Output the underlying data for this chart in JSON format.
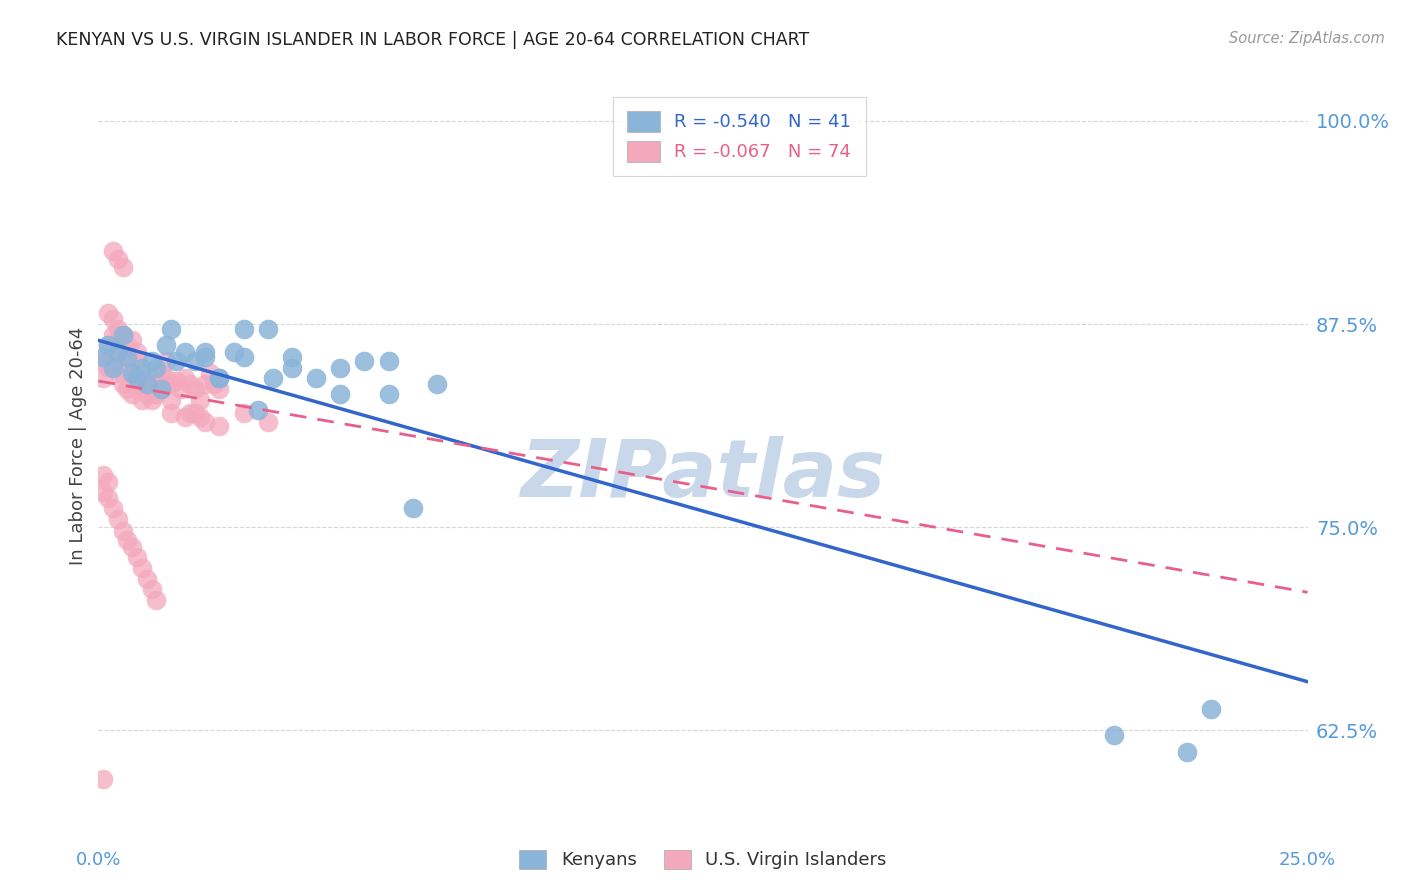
{
  "title": "KENYAN VS U.S. VIRGIN ISLANDER IN LABOR FORCE | AGE 20-64 CORRELATION CHART",
  "source": "Source: ZipAtlas.com",
  "ylabel": "In Labor Force | Age 20-64",
  "ylabel_ticks": [
    "100.0%",
    "87.5%",
    "75.0%",
    "62.5%"
  ],
  "ylabel_tick_vals": [
    1.0,
    0.875,
    0.75,
    0.625
  ],
  "xlim": [
    0.0,
    0.25
  ],
  "ylim": [
    0.575,
    1.025
  ],
  "legend_R_blue": "R = -0.540",
  "legend_N_blue": "N = 41",
  "legend_R_pink": "R = -0.067",
  "legend_N_pink": "N = 74",
  "blue_color": "#8ab4d8",
  "pink_color": "#f4a8bc",
  "blue_line_color": "#3366cc",
  "pink_line_color": "#e8608a",
  "watermark": "ZIPatlas",
  "watermark_color": "#c8d8ea",
  "title_color": "#222222",
  "source_color": "#999999",
  "axis_label_color": "#5599dd",
  "grid_color": "#cccccc",
  "background_color": "#ffffff",
  "blue_x": [
    0.001,
    0.002,
    0.003,
    0.004,
    0.005,
    0.006,
    0.007,
    0.008,
    0.009,
    0.01,
    0.011,
    0.012,
    0.013,
    0.014,
    0.015,
    0.016,
    0.018,
    0.02,
    0.022,
    0.025,
    0.028,
    0.03,
    0.033,
    0.036,
    0.04,
    0.045,
    0.05,
    0.055,
    0.06,
    0.065,
    0.022,
    0.025,
    0.03,
    0.035,
    0.04,
    0.05,
    0.06,
    0.07,
    0.21,
    0.225,
    0.23
  ],
  "blue_y": [
    0.855,
    0.862,
    0.848,
    0.858,
    0.868,
    0.855,
    0.845,
    0.842,
    0.848,
    0.838,
    0.852,
    0.848,
    0.835,
    0.862,
    0.872,
    0.852,
    0.858,
    0.852,
    0.858,
    0.842,
    0.858,
    0.872,
    0.822,
    0.842,
    0.848,
    0.842,
    0.832,
    0.852,
    0.832,
    0.762,
    0.855,
    0.842,
    0.855,
    0.872,
    0.855,
    0.848,
    0.852,
    0.838,
    0.622,
    0.612,
    0.638
  ],
  "pink_x": [
    0.001,
    0.001,
    0.002,
    0.002,
    0.003,
    0.003,
    0.004,
    0.004,
    0.005,
    0.005,
    0.006,
    0.006,
    0.007,
    0.007,
    0.008,
    0.008,
    0.009,
    0.009,
    0.01,
    0.01,
    0.011,
    0.011,
    0.012,
    0.012,
    0.013,
    0.013,
    0.014,
    0.014,
    0.015,
    0.015,
    0.016,
    0.017,
    0.018,
    0.019,
    0.02,
    0.021,
    0.022,
    0.023,
    0.024,
    0.025,
    0.002,
    0.003,
    0.004,
    0.005,
    0.006,
    0.007,
    0.008,
    0.003,
    0.004,
    0.005,
    0.001,
    0.001,
    0.002,
    0.002,
    0.003,
    0.004,
    0.005,
    0.006,
    0.007,
    0.008,
    0.009,
    0.01,
    0.011,
    0.012,
    0.03,
    0.035,
    0.02,
    0.022,
    0.025,
    0.015,
    0.018,
    0.019,
    0.021,
    0.001
  ],
  "pink_y": [
    0.852,
    0.842,
    0.862,
    0.848,
    0.868,
    0.855,
    0.858,
    0.845,
    0.852,
    0.838,
    0.848,
    0.835,
    0.845,
    0.832,
    0.852,
    0.838,
    0.842,
    0.828,
    0.845,
    0.832,
    0.838,
    0.828,
    0.84,
    0.832,
    0.845,
    0.835,
    0.852,
    0.842,
    0.838,
    0.828,
    0.84,
    0.835,
    0.842,
    0.838,
    0.835,
    0.828,
    0.838,
    0.845,
    0.838,
    0.835,
    0.882,
    0.878,
    0.872,
    0.868,
    0.862,
    0.865,
    0.858,
    0.92,
    0.915,
    0.91,
    0.782,
    0.772,
    0.778,
    0.768,
    0.762,
    0.755,
    0.748,
    0.742,
    0.738,
    0.732,
    0.725,
    0.718,
    0.712,
    0.705,
    0.82,
    0.815,
    0.82,
    0.815,
    0.812,
    0.82,
    0.818,
    0.82,
    0.818,
    0.595
  ]
}
